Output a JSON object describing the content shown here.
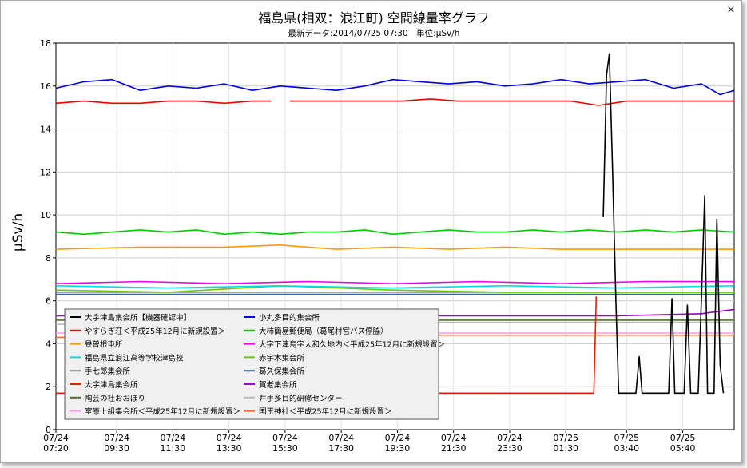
{
  "window": {
    "close_glyph": "×"
  },
  "chart_data": {
    "type": "line",
    "title": "福島県(相双：浪江町) 空間線量率グラフ",
    "subtitle": "最新データ:2014/07/25 07:30　単位:μSv/h",
    "ylabel": "μSv/h",
    "xlabel": "",
    "ylim": [
      0,
      18
    ],
    "yticks": [
      0,
      2,
      4,
      6,
      8,
      10,
      12,
      14,
      16,
      18
    ],
    "xlim": [
      "2014-07-24 07:20",
      "2014-07-25 07:30"
    ],
    "xticks": [
      {
        "date": "07/24",
        "time": "07:20",
        "t": "2014-07-24 07:20"
      },
      {
        "date": "07/24",
        "time": "09:30",
        "t": "2014-07-24 09:30"
      },
      {
        "date": "07/24",
        "time": "11:30",
        "t": "2014-07-24 11:30"
      },
      {
        "date": "07/24",
        "time": "13:30",
        "t": "2014-07-24 13:30"
      },
      {
        "date": "07/24",
        "time": "15:30",
        "t": "2014-07-24 15:30"
      },
      {
        "date": "07/24",
        "time": "17:30",
        "t": "2014-07-24 17:30"
      },
      {
        "date": "07/24",
        "time": "19:30",
        "t": "2014-07-24 19:30"
      },
      {
        "date": "07/24",
        "time": "21:30",
        "t": "2014-07-24 21:30"
      },
      {
        "date": "07/24",
        "time": "23:30",
        "t": "2014-07-24 23:30"
      },
      {
        "date": "07/25",
        "time": "01:30",
        "t": "2014-07-25 01:30"
      },
      {
        "date": "07/25",
        "time": "03:40",
        "t": "2014-07-25 03:40"
      },
      {
        "date": "07/25",
        "time": "05:40",
        "t": "2014-07-25 05:40"
      }
    ],
    "grid": true,
    "legend_position": "bottom-left",
    "series": [
      {
        "name": "大字津島集会所【機器確認中】",
        "color": "#000000",
        "points": [
          [
            "2014-07-25 02:50",
            9.9
          ],
          [
            "2014-07-25 02:57",
            16.5
          ],
          [
            "2014-07-25 03:03",
            17.5
          ],
          [
            "2014-07-25 03:10",
            12.0
          ],
          [
            "2014-07-25 03:17",
            6.0
          ],
          [
            "2014-07-25 03:23",
            1.7
          ],
          [
            "2014-07-25 04:00",
            1.7
          ],
          [
            "2014-07-25 04:07",
            3.4
          ],
          [
            "2014-07-25 04:13",
            1.7
          ],
          [
            "2014-07-25 05:10",
            1.7
          ],
          [
            "2014-07-25 05:17",
            6.1
          ],
          [
            "2014-07-25 05:23",
            1.7
          ],
          [
            "2014-07-25 05:43",
            1.7
          ],
          [
            "2014-07-25 05:50",
            5.8
          ],
          [
            "2014-07-25 05:57",
            1.7
          ],
          [
            "2014-07-25 06:13",
            1.7
          ],
          [
            "2014-07-25 06:20",
            6.1
          ],
          [
            "2014-07-25 06:27",
            10.9
          ],
          [
            "2014-07-25 06:33",
            1.7
          ],
          [
            "2014-07-25 06:47",
            1.7
          ],
          [
            "2014-07-25 06:53",
            9.8
          ],
          [
            "2014-07-25 07:00",
            3.0
          ],
          [
            "2014-07-25 07:07",
            1.7
          ]
        ]
      },
      {
        "name": "小丸多目的集会所",
        "color": "#0000dd",
        "points": [
          [
            "2014-07-24 07:20",
            15.9
          ],
          [
            "2014-07-24 08:20",
            16.2
          ],
          [
            "2014-07-24 09:20",
            16.3
          ],
          [
            "2014-07-24 10:20",
            15.8
          ],
          [
            "2014-07-24 11:20",
            16.0
          ],
          [
            "2014-07-24 12:20",
            15.9
          ],
          [
            "2014-07-24 13:20",
            16.1
          ],
          [
            "2014-07-24 14:20",
            15.8
          ],
          [
            "2014-07-24 15:20",
            16.0
          ],
          [
            "2014-07-24 16:20",
            15.9
          ],
          [
            "2014-07-24 17:20",
            15.8
          ],
          [
            "2014-07-24 18:20",
            16.0
          ],
          [
            "2014-07-24 19:20",
            16.3
          ],
          [
            "2014-07-24 20:20",
            16.2
          ],
          [
            "2014-07-24 21:20",
            16.1
          ],
          [
            "2014-07-24 22:20",
            16.2
          ],
          [
            "2014-07-24 23:20",
            16.0
          ],
          [
            "2014-07-25 00:20",
            16.1
          ],
          [
            "2014-07-25 01:20",
            16.3
          ],
          [
            "2014-07-25 02:20",
            16.1
          ],
          [
            "2014-07-25 03:20",
            16.2
          ],
          [
            "2014-07-25 04:20",
            16.3
          ],
          [
            "2014-07-25 05:20",
            15.9
          ],
          [
            "2014-07-25 06:20",
            16.1
          ],
          [
            "2014-07-25 07:00",
            15.6
          ],
          [
            "2014-07-25 07:30",
            15.8
          ]
        ]
      },
      {
        "name": "やすらぎ荘＜平成25年12月に新規設置＞",
        "color": "#ee0000",
        "points": [
          [
            "2014-07-24 07:20",
            15.2
          ],
          [
            "2014-07-24 08:20",
            15.3
          ],
          [
            "2014-07-24 09:20",
            15.2
          ],
          [
            "2014-07-24 10:20",
            15.2
          ],
          [
            "2014-07-24 11:20",
            15.3
          ],
          [
            "2014-07-24 12:20",
            15.3
          ],
          [
            "2014-07-24 13:20",
            15.2
          ],
          [
            "2014-07-24 14:20",
            15.3
          ],
          [
            "2014-07-24 15:00",
            15.3
          ],
          [
            "2014-07-24 15:30",
            null
          ],
          [
            "2014-07-24 15:40",
            15.3
          ],
          [
            "2014-07-24 16:40",
            15.3
          ],
          [
            "2014-07-24 17:40",
            15.3
          ],
          [
            "2014-07-24 18:40",
            15.3
          ],
          [
            "2014-07-24 19:40",
            15.3
          ],
          [
            "2014-07-24 20:40",
            15.4
          ],
          [
            "2014-07-24 21:40",
            15.3
          ],
          [
            "2014-07-24 22:40",
            15.3
          ],
          [
            "2014-07-24 23:40",
            15.3
          ],
          [
            "2014-07-25 00:40",
            15.3
          ],
          [
            "2014-07-25 01:40",
            15.3
          ],
          [
            "2014-07-25 02:40",
            15.1
          ],
          [
            "2014-07-25 03:40",
            15.3
          ],
          [
            "2014-07-25 04:40",
            15.3
          ],
          [
            "2014-07-25 05:40",
            15.3
          ],
          [
            "2014-07-25 06:40",
            15.3
          ],
          [
            "2014-07-25 07:30",
            15.3
          ]
        ]
      },
      {
        "name": "大柿簡易郵便局（葛尾村宮バス停脇）",
        "color": "#00cc00",
        "points": [
          [
            "2014-07-24 07:20",
            9.2
          ],
          [
            "2014-07-24 08:20",
            9.1
          ],
          [
            "2014-07-24 09:20",
            9.2
          ],
          [
            "2014-07-24 10:20",
            9.3
          ],
          [
            "2014-07-24 11:20",
            9.2
          ],
          [
            "2014-07-24 12:20",
            9.3
          ],
          [
            "2014-07-24 13:20",
            9.1
          ],
          [
            "2014-07-24 14:20",
            9.2
          ],
          [
            "2014-07-24 15:20",
            9.1
          ],
          [
            "2014-07-24 16:20",
            9.2
          ],
          [
            "2014-07-24 17:20",
            9.2
          ],
          [
            "2014-07-24 18:20",
            9.3
          ],
          [
            "2014-07-24 19:20",
            9.1
          ],
          [
            "2014-07-24 20:20",
            9.2
          ],
          [
            "2014-07-24 21:20",
            9.3
          ],
          [
            "2014-07-24 22:20",
            9.2
          ],
          [
            "2014-07-24 23:20",
            9.2
          ],
          [
            "2014-07-25 00:20",
            9.3
          ],
          [
            "2014-07-25 01:20",
            9.2
          ],
          [
            "2014-07-25 02:20",
            9.3
          ],
          [
            "2014-07-25 03:20",
            9.2
          ],
          [
            "2014-07-25 04:20",
            9.3
          ],
          [
            "2014-07-25 05:20",
            9.2
          ],
          [
            "2014-07-25 06:20",
            9.3
          ],
          [
            "2014-07-25 07:30",
            9.2
          ]
        ]
      },
      {
        "name": "昼曽根屯所",
        "color": "#ff9900",
        "points": [
          [
            "2014-07-24 07:20",
            8.4
          ],
          [
            "2014-07-24 10:20",
            8.5
          ],
          [
            "2014-07-24 13:20",
            8.5
          ],
          [
            "2014-07-24 15:20",
            8.6
          ],
          [
            "2014-07-24 17:20",
            8.4
          ],
          [
            "2014-07-24 19:20",
            8.5
          ],
          [
            "2014-07-24 21:20",
            8.4
          ],
          [
            "2014-07-24 23:20",
            8.5
          ],
          [
            "2014-07-25 01:20",
            8.4
          ],
          [
            "2014-07-25 03:20",
            8.4
          ],
          [
            "2014-07-25 05:20",
            8.4
          ],
          [
            "2014-07-25 07:30",
            8.4
          ]
        ]
      },
      {
        "name": "大字下津島字大和久地内＜平成25年12月に新規設置＞",
        "color": "#ee00ee",
        "points": [
          [
            "2014-07-24 07:20",
            6.8
          ],
          [
            "2014-07-24 10:20",
            6.9
          ],
          [
            "2014-07-24 13:20",
            6.8
          ],
          [
            "2014-07-24 16:20",
            6.9
          ],
          [
            "2014-07-24 19:20",
            6.8
          ],
          [
            "2014-07-24 22:20",
            6.9
          ],
          [
            "2014-07-25 01:20",
            6.8
          ],
          [
            "2014-07-25 04:20",
            6.9
          ],
          [
            "2014-07-25 07:30",
            6.9
          ]
        ]
      },
      {
        "name": "福島県立浪江高等学校津島校",
        "color": "#00dddd",
        "points": [
          [
            "2014-07-24 07:20",
            6.7
          ],
          [
            "2014-07-24 11:20",
            6.6
          ],
          [
            "2014-07-24 15:20",
            6.7
          ],
          [
            "2014-07-24 19:20",
            6.6
          ],
          [
            "2014-07-24 23:20",
            6.7
          ],
          [
            "2014-07-25 03:20",
            6.6
          ],
          [
            "2014-07-25 07:30",
            6.7
          ]
        ]
      },
      {
        "name": "赤宇木集会所",
        "color": "#66cc00",
        "points": [
          [
            "2014-07-24 07:20",
            6.5
          ],
          [
            "2014-07-24 11:20",
            6.4
          ],
          [
            "2014-07-24 15:20",
            6.7
          ],
          [
            "2014-07-24 19:20",
            6.5
          ],
          [
            "2014-07-24 23:20",
            6.4
          ],
          [
            "2014-07-25 03:20",
            6.4
          ],
          [
            "2014-07-25 07:30",
            6.4
          ]
        ]
      },
      {
        "name": "手七郎集会所",
        "color": "#888888",
        "points": [
          [
            "2014-07-24 07:20",
            6.4
          ],
          [
            "2014-07-24 13:20",
            6.4
          ],
          [
            "2014-07-24 19:20",
            6.4
          ],
          [
            "2014-07-25 01:20",
            6.4
          ],
          [
            "2014-07-25 07:30",
            6.4
          ]
        ]
      },
      {
        "name": "葛久保集会所",
        "color": "#336699",
        "points": [
          [
            "2014-07-24 07:20",
            6.3
          ],
          [
            "2014-07-24 13:20",
            6.3
          ],
          [
            "2014-07-24 19:20",
            6.3
          ],
          [
            "2014-07-25 01:20",
            6.3
          ],
          [
            "2014-07-25 07:30",
            6.3
          ]
        ]
      },
      {
        "name": "大字津島集会所",
        "color": "#dd2200",
        "points": [
          [
            "2014-07-24 07:20",
            1.7
          ],
          [
            "2014-07-25 02:30",
            1.7
          ],
          [
            "2014-07-25 02:35",
            6.2
          ]
        ]
      },
      {
        "name": "賀老集会所",
        "color": "#9900cc",
        "points": [
          [
            "2014-07-24 07:20",
            5.3
          ],
          [
            "2014-07-25 03:20",
            5.3
          ],
          [
            "2014-07-25 06:20",
            5.4
          ],
          [
            "2014-07-25 07:30",
            5.6
          ]
        ]
      },
      {
        "name": "陶芸の杜おおぼり",
        "color": "#556b2f",
        "points": [
          [
            "2014-07-24 07:20",
            5.1
          ],
          [
            "2014-07-24 19:20",
            5.1
          ],
          [
            "2014-07-25 07:30",
            5.1
          ]
        ]
      },
      {
        "name": "井手多目的研修センター",
        "color": "#bbbbbb",
        "points": [
          [
            "2014-07-24 07:20",
            4.9
          ],
          [
            "2014-07-24 19:20",
            5.0
          ],
          [
            "2014-07-25 07:30",
            5.0
          ]
        ]
      },
      {
        "name": "室原上組集会所＜平成25年12月に新規設置＞",
        "color": "#ff99ee",
        "points": [
          [
            "2014-07-24 07:20",
            4.5
          ],
          [
            "2014-07-24 19:20",
            4.5
          ],
          [
            "2014-07-25 07:30",
            4.5
          ]
        ]
      },
      {
        "name": "国玉神社＜平成25年12月に新規設置＞",
        "color": "#ff6633",
        "points": [
          [
            "2014-07-24 07:20",
            4.3
          ],
          [
            "2014-07-24 19:20",
            4.4
          ],
          [
            "2014-07-25 07:30",
            4.4
          ]
        ]
      }
    ]
  }
}
